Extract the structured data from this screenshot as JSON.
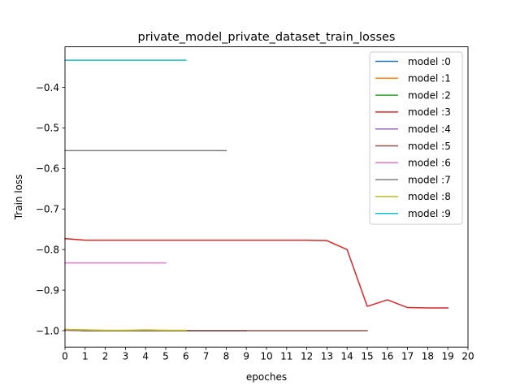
{
  "chart_data": {
    "type": "line",
    "title": "private_model_private_dataset_train_losses",
    "xlabel": "epoches",
    "ylabel": "Train loss",
    "xlim": [
      0,
      20
    ],
    "ylim": [
      -1.0405,
      -0.3
    ],
    "xticks": [
      0,
      1,
      2,
      3,
      4,
      5,
      6,
      7,
      8,
      9,
      10,
      11,
      12,
      13,
      14,
      15,
      16,
      17,
      18,
      19,
      20
    ],
    "yticks": [
      -1.0,
      -0.9,
      -0.8,
      -0.7,
      -0.6,
      -0.5,
      -0.4
    ],
    "ytick_labels": [
      "−1.0",
      "−0.9",
      "−0.8",
      "−0.7",
      "−0.6",
      "−0.5",
      "−0.4"
    ],
    "grid": false,
    "legend_position": "top-right",
    "series": [
      {
        "name": "model :0",
        "color": "#1f77b4",
        "x": [
          0,
          1,
          2,
          3,
          4,
          5,
          6,
          7,
          8,
          9
        ],
        "values": [
          -0.998,
          -1.0,
          -1.0,
          -1.0,
          -1.0,
          -1.0,
          -1.0,
          -1.0,
          -1.0,
          -1.0
        ]
      },
      {
        "name": "model :1",
        "color": "#ff7f0e",
        "x": [
          0,
          1,
          2,
          3,
          4,
          5,
          6
        ],
        "values": [
          -0.997,
          -0.999,
          -1.0,
          -1.0,
          -0.999,
          -1.0,
          -1.0
        ]
      },
      {
        "name": "model :2",
        "color": "#2ca02c",
        "x": [
          0,
          1,
          2,
          3,
          4,
          5,
          6,
          7,
          8,
          9
        ],
        "values": [
          -0.998,
          -1.0,
          -1.0,
          -1.0,
          -1.0,
          -1.0,
          -1.0,
          -1.0,
          -1.0,
          -1.0
        ]
      },
      {
        "name": "model :3",
        "color": "#d62728",
        "x": [
          0,
          1,
          2,
          3,
          4,
          5,
          6,
          7,
          8,
          9,
          10,
          11,
          12,
          13,
          14,
          15,
          16,
          17,
          18,
          19
        ],
        "values": [
          -0.773,
          -0.777,
          -0.777,
          -0.777,
          -0.777,
          -0.777,
          -0.777,
          -0.777,
          -0.777,
          -0.777,
          -0.777,
          -0.777,
          -0.777,
          -0.778,
          -0.8,
          -0.94,
          -0.924,
          -0.943,
          -0.944,
          -0.944
        ]
      },
      {
        "name": "model :4",
        "color": "#9467bd",
        "x": [
          0,
          1,
          2,
          3,
          4,
          5,
          6,
          7,
          8,
          9
        ],
        "values": [
          -0.999,
          -1.0,
          -1.0,
          -1.0,
          -1.0,
          -1.0,
          -1.0,
          -1.0,
          -1.0,
          -1.0
        ]
      },
      {
        "name": "model :5",
        "color": "#8c564b",
        "x": [
          0,
          1,
          2,
          3,
          4,
          5,
          6,
          7,
          8,
          9,
          10,
          11,
          12,
          13,
          14,
          15
        ],
        "values": [
          -0.998,
          -1.0,
          -1.0,
          -1.0,
          -1.0,
          -1.0,
          -1.0,
          -1.0,
          -1.0,
          -1.0,
          -1.0,
          -1.0,
          -1.0,
          -1.0,
          -1.0,
          -1.0
        ]
      },
      {
        "name": "model :6",
        "color": "#e377c2",
        "x": [
          0,
          1,
          2,
          3,
          4,
          5
        ],
        "values": [
          -0.833,
          -0.833,
          -0.833,
          -0.833,
          -0.833,
          -0.833
        ]
      },
      {
        "name": "model :7",
        "color": "#7f7f7f",
        "x": [
          0,
          1,
          2,
          3,
          4,
          5,
          6,
          7,
          8
        ],
        "values": [
          -0.556,
          -0.556,
          -0.556,
          -0.556,
          -0.556,
          -0.556,
          -0.556,
          -0.556,
          -0.556
        ]
      },
      {
        "name": "model :8",
        "color": "#bcbd22",
        "x": [
          0,
          1,
          2,
          3,
          4,
          5,
          6
        ],
        "values": [
          -0.997,
          -0.998,
          -0.999,
          -0.999,
          -0.998,
          -0.999,
          -0.999
        ]
      },
      {
        "name": "model :9",
        "color": "#17becf",
        "x": [
          0,
          1,
          2,
          3,
          4,
          5,
          6
        ],
        "values": [
          -0.333,
          -0.333,
          -0.333,
          -0.333,
          -0.333,
          -0.333,
          -0.333
        ]
      }
    ]
  }
}
